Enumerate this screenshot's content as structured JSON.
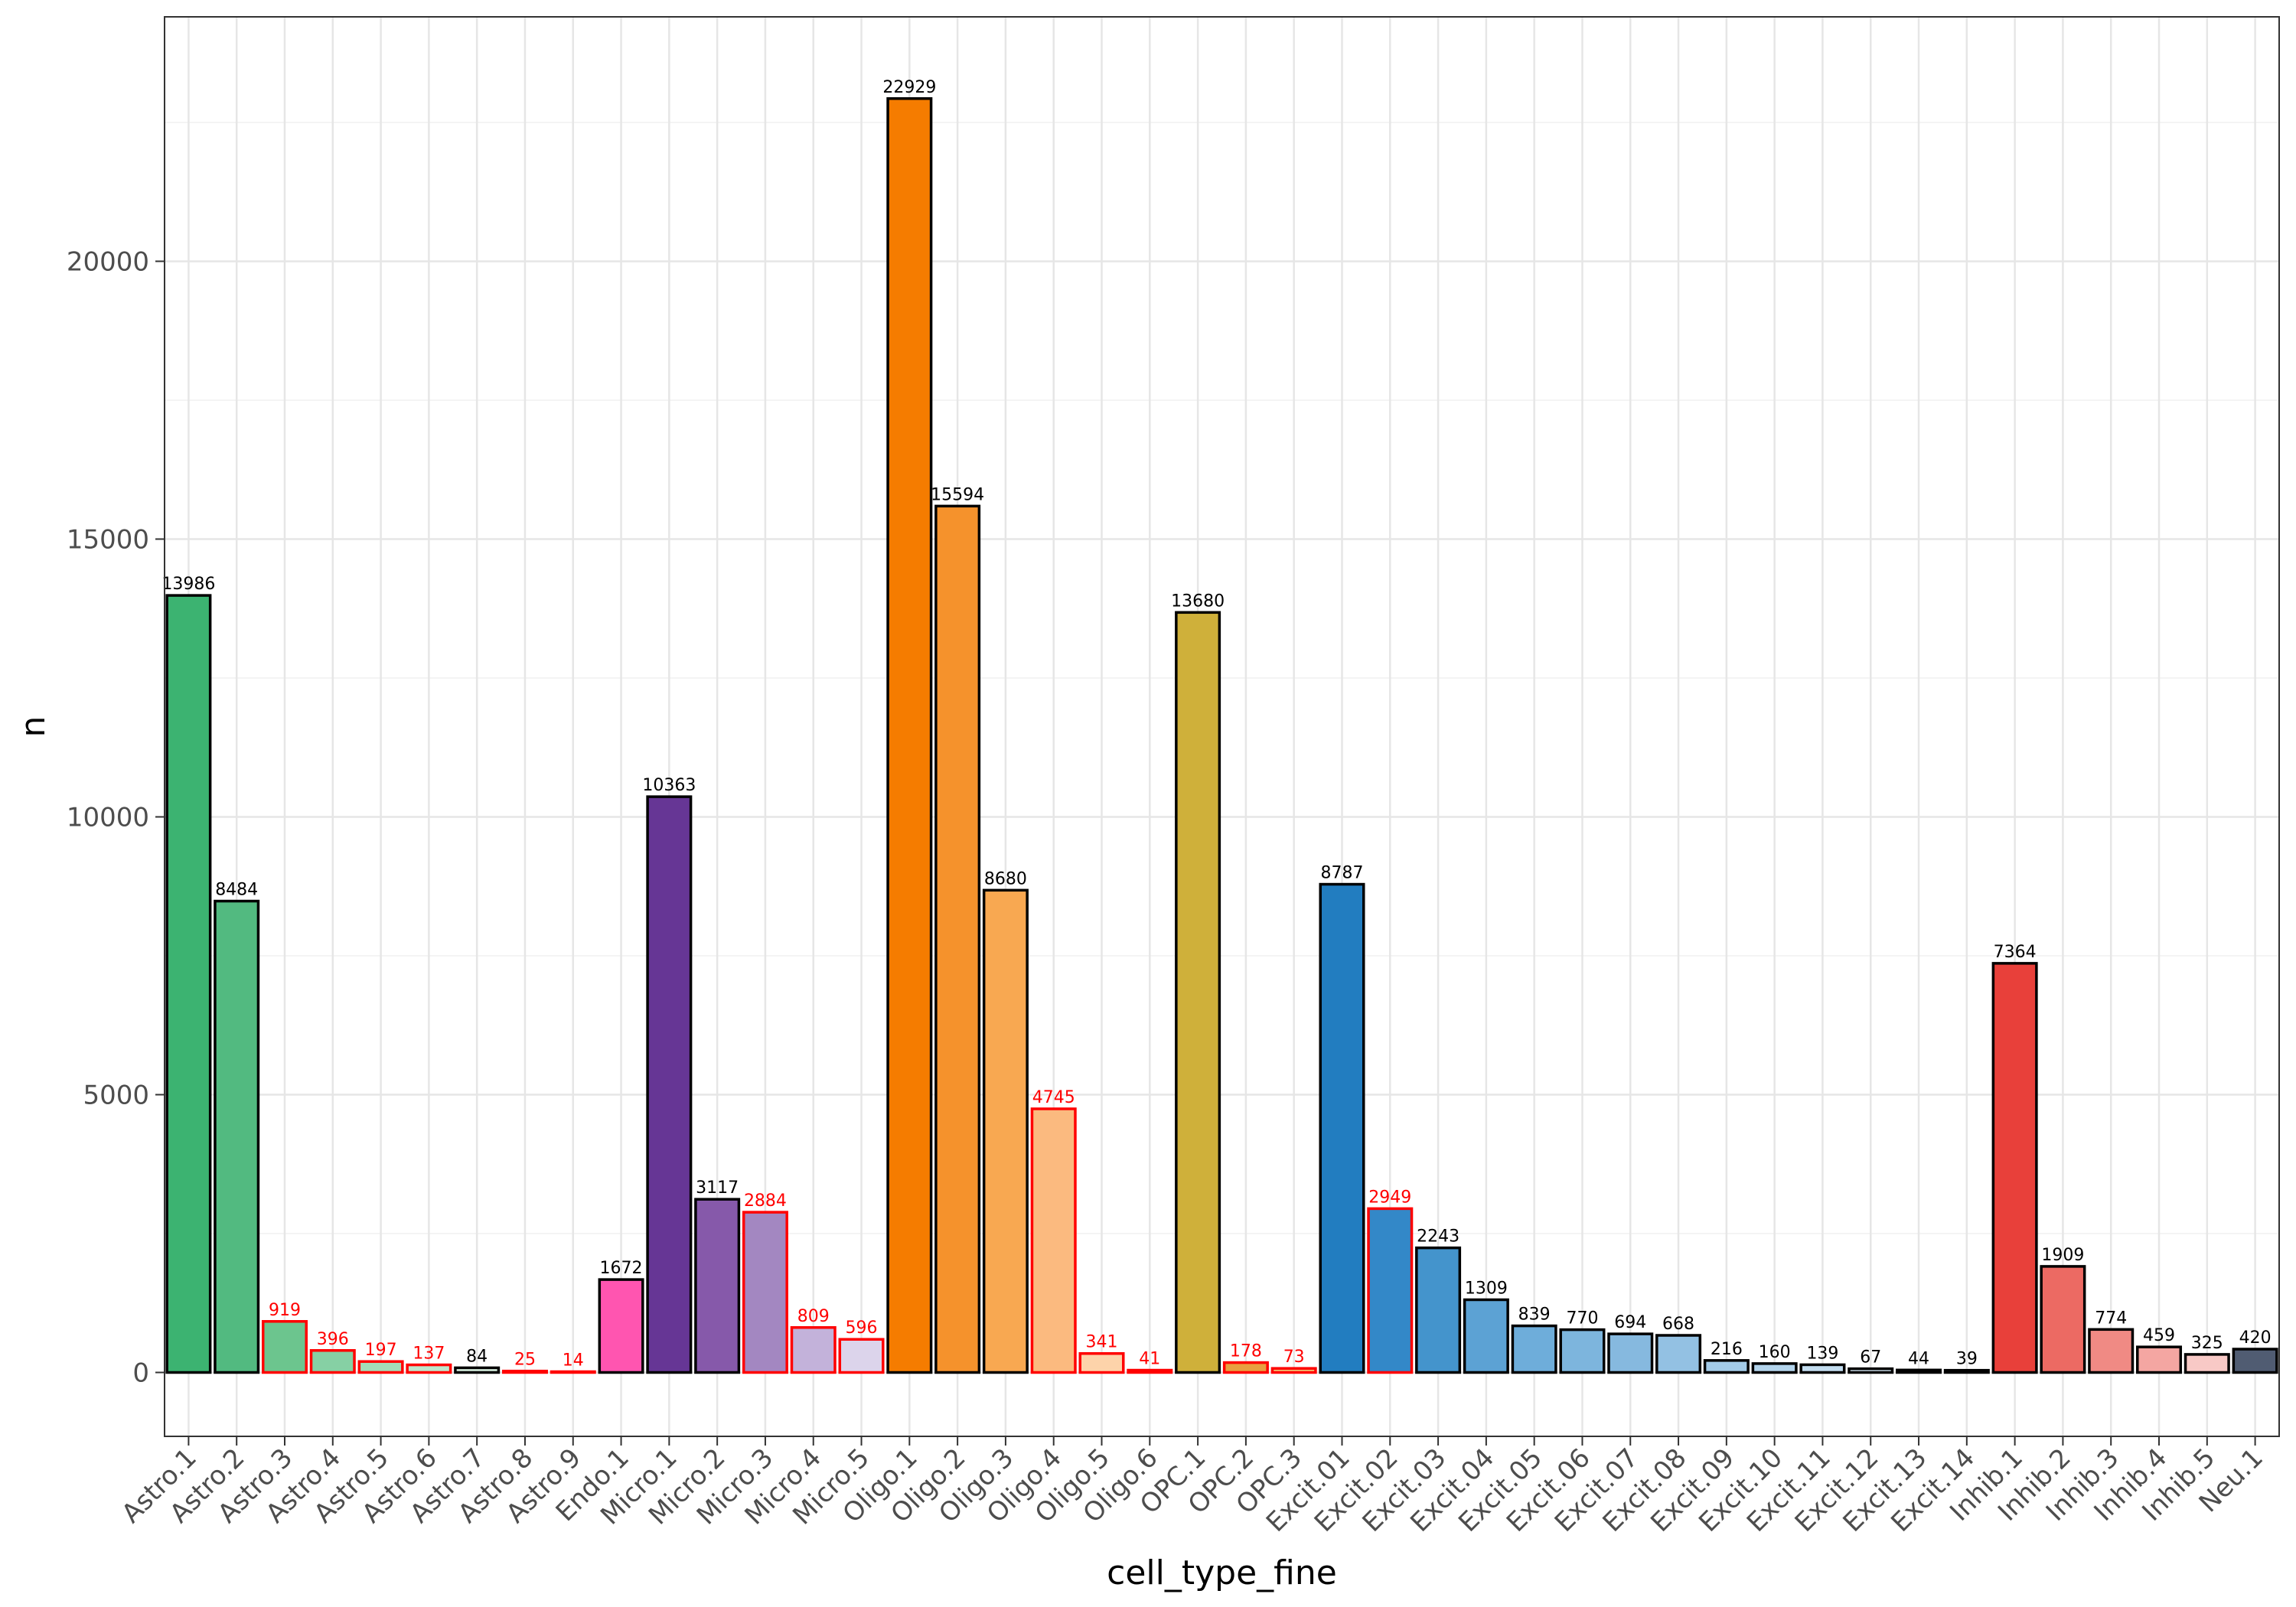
{
  "chart_data": {
    "type": "bar",
    "xlabel": "cell_type_fine",
    "ylabel": "n",
    "ylim": [
      -1150,
      24400
    ],
    "y_ticks": [
      0,
      5000,
      10000,
      15000,
      20000
    ],
    "y_tick_labels": [
      "0",
      "5000",
      "10000",
      "15000",
      "20000"
    ],
    "grid": true,
    "categories": [
      "Astro.1",
      "Astro.2",
      "Astro.3",
      "Astro.4",
      "Astro.5",
      "Astro.6",
      "Astro.7",
      "Astro.8",
      "Astro.9",
      "Endo.1",
      "Micro.1",
      "Micro.2",
      "Micro.3",
      "Micro.4",
      "Micro.5",
      "Oligo.1",
      "Oligo.2",
      "Oligo.3",
      "Oligo.4",
      "Oligo.5",
      "Oligo.6",
      "OPC.1",
      "OPC.2",
      "OPC.3",
      "Excit.01",
      "Excit.02",
      "Excit.03",
      "Excit.04",
      "Excit.05",
      "Excit.06",
      "Excit.07",
      "Excit.08",
      "Excit.09",
      "Excit.10",
      "Excit.11",
      "Excit.12",
      "Excit.13",
      "Excit.14",
      "Inhib.1",
      "Inhib.2",
      "Inhib.3",
      "Inhib.4",
      "Inhib.5",
      "Neu.1"
    ],
    "values": [
      13986,
      8484,
      919,
      396,
      197,
      137,
      84,
      25,
      14,
      1672,
      10363,
      3117,
      2884,
      809,
      596,
      22929,
      15594,
      8680,
      4745,
      341,
      41,
      13680,
      178,
      73,
      8787,
      2949,
      2243,
      1309,
      839,
      770,
      694,
      668,
      216,
      160,
      139,
      67,
      44,
      39,
      7364,
      1909,
      774,
      459,
      325,
      420
    ],
    "value_labels": [
      "13986",
      "8484",
      "919",
      "396",
      "197",
      "137",
      "84",
      "25",
      "14",
      "1672",
      "10363",
      "3117",
      "2884",
      "809",
      "596",
      "22929",
      "15594",
      "8680",
      "4745",
      "341",
      "41",
      "13680",
      "178",
      "73",
      "8787",
      "2949",
      "2243",
      "1309",
      "839",
      "770",
      "694",
      "668",
      "216",
      "160",
      "139",
      "67",
      "44",
      "39",
      "7364",
      "1909",
      "774",
      "459",
      "325",
      "420"
    ],
    "fill_colors": [
      "#3CB371",
      "#52BA80",
      "#6CC58E",
      "#86D0A4",
      "#A3DCB8",
      "#BFE6CC",
      "#D8F0E0",
      "#E8F6EC",
      "#F3FAF5",
      "#FF55B0",
      "#663695",
      "#8659AA",
      "#A387C1",
      "#C3B2DA",
      "#DCD4EB",
      "#F57C00",
      "#F5922C",
      "#F8A851",
      "#FBBA7F",
      "#FDD3AA",
      "#FDE5CB",
      "#CFB03A",
      "#E8A040",
      "#F0C070",
      "#227DC0",
      "#3388C8",
      "#4494CC",
      "#5CA2D4",
      "#6EADDA",
      "#7DB5DD",
      "#86B9DF",
      "#93C1E3",
      "#A3CBE8",
      "#B3D4EC",
      "#C3DDF0",
      "#D3E6F4",
      "#E0EDF8",
      "#EAF3FA",
      "#E8403A",
      "#EC6A63",
      "#F08A84",
      "#F4A6A2",
      "#F8C9C6",
      "#505C72"
    ],
    "outline_colors": [
      "#000000",
      "#000000",
      "#FF0000",
      "#FF0000",
      "#FF0000",
      "#FF0000",
      "#000000",
      "#FF0000",
      "#FF0000",
      "#000000",
      "#000000",
      "#000000",
      "#FF0000",
      "#FF0000",
      "#FF0000",
      "#000000",
      "#000000",
      "#000000",
      "#FF0000",
      "#FF0000",
      "#FF0000",
      "#000000",
      "#FF0000",
      "#FF0000",
      "#000000",
      "#FF0000",
      "#000000",
      "#000000",
      "#000000",
      "#000000",
      "#000000",
      "#000000",
      "#000000",
      "#000000",
      "#000000",
      "#000000",
      "#000000",
      "#000000",
      "#000000",
      "#000000",
      "#000000",
      "#000000",
      "#000000",
      "#000000"
    ]
  }
}
